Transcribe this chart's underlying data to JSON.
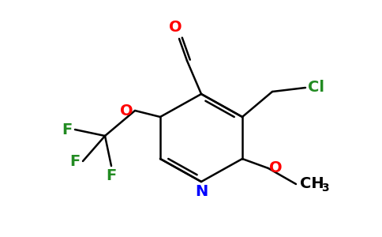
{
  "background_color": "#ffffff",
  "ring_color": "#000000",
  "atom_colors": {
    "O": "#ff0000",
    "N": "#0000ff",
    "F": "#228B22",
    "Cl": "#228B22",
    "C": "#000000"
  },
  "lw": 1.8,
  "font_size": 14
}
